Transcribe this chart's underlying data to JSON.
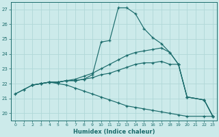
{
  "xlabel": "Humidex (Indice chaleur)",
  "xlim": [
    -0.5,
    23.5
  ],
  "ylim": [
    19.5,
    27.5
  ],
  "background_color": "#cceaea",
  "grid_color": "#b0d8d8",
  "line_color": "#1a6b6b",
  "lines": [
    {
      "x": [
        0,
        1,
        2,
        3,
        4,
        5,
        6,
        7,
        8,
        9,
        10,
        11,
        12,
        13,
        14,
        15,
        16,
        17,
        18,
        19,
        20,
        22,
        23
      ],
      "y": [
        21.3,
        21.6,
        21.9,
        22.0,
        22.1,
        22.1,
        22.2,
        22.2,
        22.3,
        22.6,
        24.8,
        24.9,
        27.1,
        27.1,
        26.7,
        25.7,
        25.1,
        24.7,
        24.1,
        23.3,
        21.1,
        20.9,
        19.8
      ]
    },
    {
      "x": [
        2,
        3,
        4,
        5,
        6,
        7,
        8,
        9,
        10,
        11,
        12,
        13,
        14,
        15,
        16,
        17,
        18,
        19,
        20,
        22,
        23
      ],
      "y": [
        21.9,
        22.0,
        22.1,
        22.1,
        22.2,
        22.3,
        22.5,
        22.7,
        23.0,
        23.3,
        23.6,
        23.9,
        24.1,
        24.2,
        24.3,
        24.4,
        24.1,
        23.3,
        21.1,
        20.9,
        19.8
      ]
    },
    {
      "x": [
        2,
        3,
        4,
        5,
        6,
        7,
        8,
        9,
        10,
        11,
        12,
        13,
        14,
        15,
        16,
        17,
        18,
        19,
        20,
        22,
        23
      ],
      "y": [
        21.9,
        22.0,
        22.1,
        22.1,
        22.2,
        22.2,
        22.3,
        22.4,
        22.6,
        22.7,
        22.9,
        23.1,
        23.3,
        23.4,
        23.4,
        23.5,
        23.3,
        23.3,
        21.1,
        20.9,
        19.8
      ]
    },
    {
      "x": [
        0,
        1,
        2,
        3,
        4,
        5,
        6,
        7,
        8,
        9,
        10,
        11,
        12,
        13,
        14,
        15,
        16,
        17,
        18,
        19,
        20,
        22,
        23
      ],
      "y": [
        21.3,
        21.6,
        21.9,
        22.0,
        22.1,
        22.0,
        21.9,
        21.7,
        21.5,
        21.3,
        21.1,
        20.9,
        20.7,
        20.5,
        20.4,
        20.3,
        20.2,
        20.1,
        20.0,
        19.9,
        19.8,
        19.8,
        19.8
      ]
    }
  ],
  "yticks": [
    20,
    21,
    22,
    23,
    24,
    25,
    26,
    27
  ],
  "xticks": [
    0,
    1,
    2,
    3,
    4,
    5,
    6,
    7,
    8,
    9,
    10,
    11,
    12,
    13,
    14,
    15,
    16,
    17,
    18,
    19,
    20,
    21,
    22,
    23
  ]
}
